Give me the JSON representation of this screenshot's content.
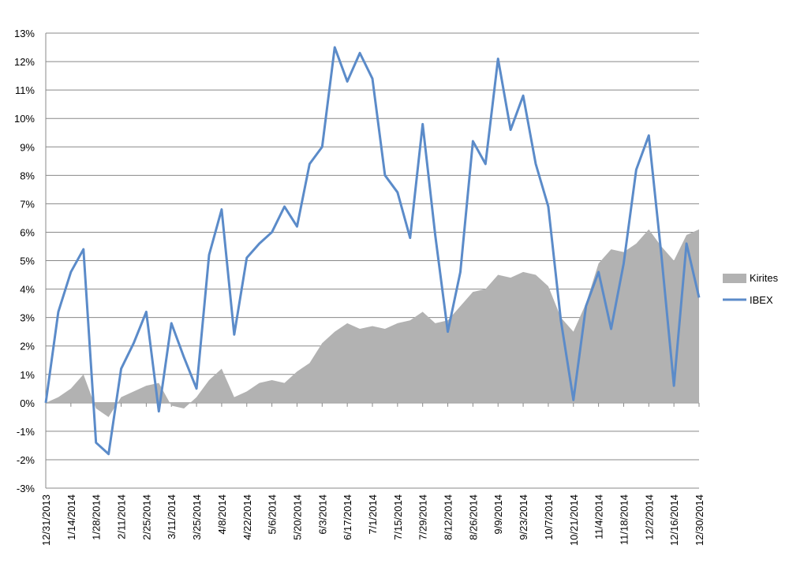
{
  "chart_data": {
    "type": "line",
    "categories": [
      "12/31/2013",
      null,
      "1/14/2014",
      null,
      "1/28/2014",
      null,
      "2/11/2014",
      null,
      "2/25/2014",
      null,
      "3/11/2014",
      null,
      "3/25/2014",
      null,
      "4/8/2014",
      null,
      "4/22/2014",
      null,
      "5/6/2014",
      null,
      "5/20/2014",
      null,
      "6/3/2014",
      null,
      "6/17/2014",
      null,
      "7/1/2014",
      null,
      "7/15/2014",
      null,
      "7/29/2014",
      null,
      "8/12/2014",
      null,
      "8/26/2014",
      null,
      "9/9/2014",
      null,
      "9/23/2014",
      null,
      "10/7/2014",
      null,
      "10/21/2014",
      null,
      "11/4/2014",
      null,
      "11/18/2014",
      null,
      "12/2/2014",
      null,
      "12/16/2014",
      null,
      "12/30/2014"
    ],
    "series": [
      {
        "name": "Kirites",
        "kind": "area",
        "color": "#b2b2b2",
        "values": [
          0,
          0.2,
          0.5,
          1.0,
          -0.2,
          -0.5,
          0.2,
          0.4,
          0.6,
          0.7,
          -0.1,
          -0.2,
          0.2,
          0.8,
          1.2,
          0.2,
          0.4,
          0.7,
          0.8,
          0.7,
          1.1,
          1.4,
          2.1,
          2.5,
          2.8,
          2.6,
          2.7,
          2.6,
          2.8,
          2.9,
          3.2,
          2.8,
          2.9,
          3.4,
          3.9,
          4.0,
          4.5,
          4.4,
          4.6,
          4.5,
          4.1,
          3.0,
          2.5,
          3.5,
          4.9,
          5.4,
          5.3,
          5.6,
          6.1,
          5.5,
          5.0,
          5.9,
          6.1
        ]
      },
      {
        "name": "IBEX",
        "kind": "line",
        "color": "#5b8bc9",
        "values": [
          0,
          3.2,
          4.6,
          5.4,
          -1.4,
          -1.8,
          1.2,
          2.1,
          3.2,
          -0.3,
          2.8,
          1.6,
          0.5,
          5.2,
          6.8,
          2.4,
          5.1,
          5.6,
          6.0,
          6.9,
          6.2,
          8.4,
          9.0,
          12.5,
          11.3,
          12.3,
          11.4,
          8.0,
          7.4,
          5.8,
          9.8,
          5.9,
          2.5,
          4.6,
          9.2,
          8.4,
          12.1,
          9.6,
          10.8,
          8.4,
          6.9,
          2.9,
          0.1,
          3.4,
          4.6,
          2.6,
          4.9,
          8.2,
          9.4,
          5.2,
          0.6,
          5.6,
          3.7
        ]
      }
    ],
    "ylim": [
      -3,
      13
    ],
    "yticks": [
      {
        "value": -3,
        "label": "-3%"
      },
      {
        "value": -2,
        "label": "-2%"
      },
      {
        "value": -1,
        "label": "-1%"
      },
      {
        "value": 0,
        "label": "0%"
      },
      {
        "value": 1,
        "label": "1%"
      },
      {
        "value": 2,
        "label": "2%"
      },
      {
        "value": 3,
        "label": "3%"
      },
      {
        "value": 4,
        "label": "4%"
      },
      {
        "value": 5,
        "label": "5%"
      },
      {
        "value": 6,
        "label": "6%"
      },
      {
        "value": 7,
        "label": "7%"
      },
      {
        "value": 8,
        "label": "8%"
      },
      {
        "value": 9,
        "label": "9%"
      },
      {
        "value": 10,
        "label": "10%"
      },
      {
        "value": 11,
        "label": "11%"
      },
      {
        "value": 12,
        "label": "12%"
      },
      {
        "value": 13,
        "label": "13%"
      }
    ],
    "grid": true,
    "legend": "right"
  }
}
